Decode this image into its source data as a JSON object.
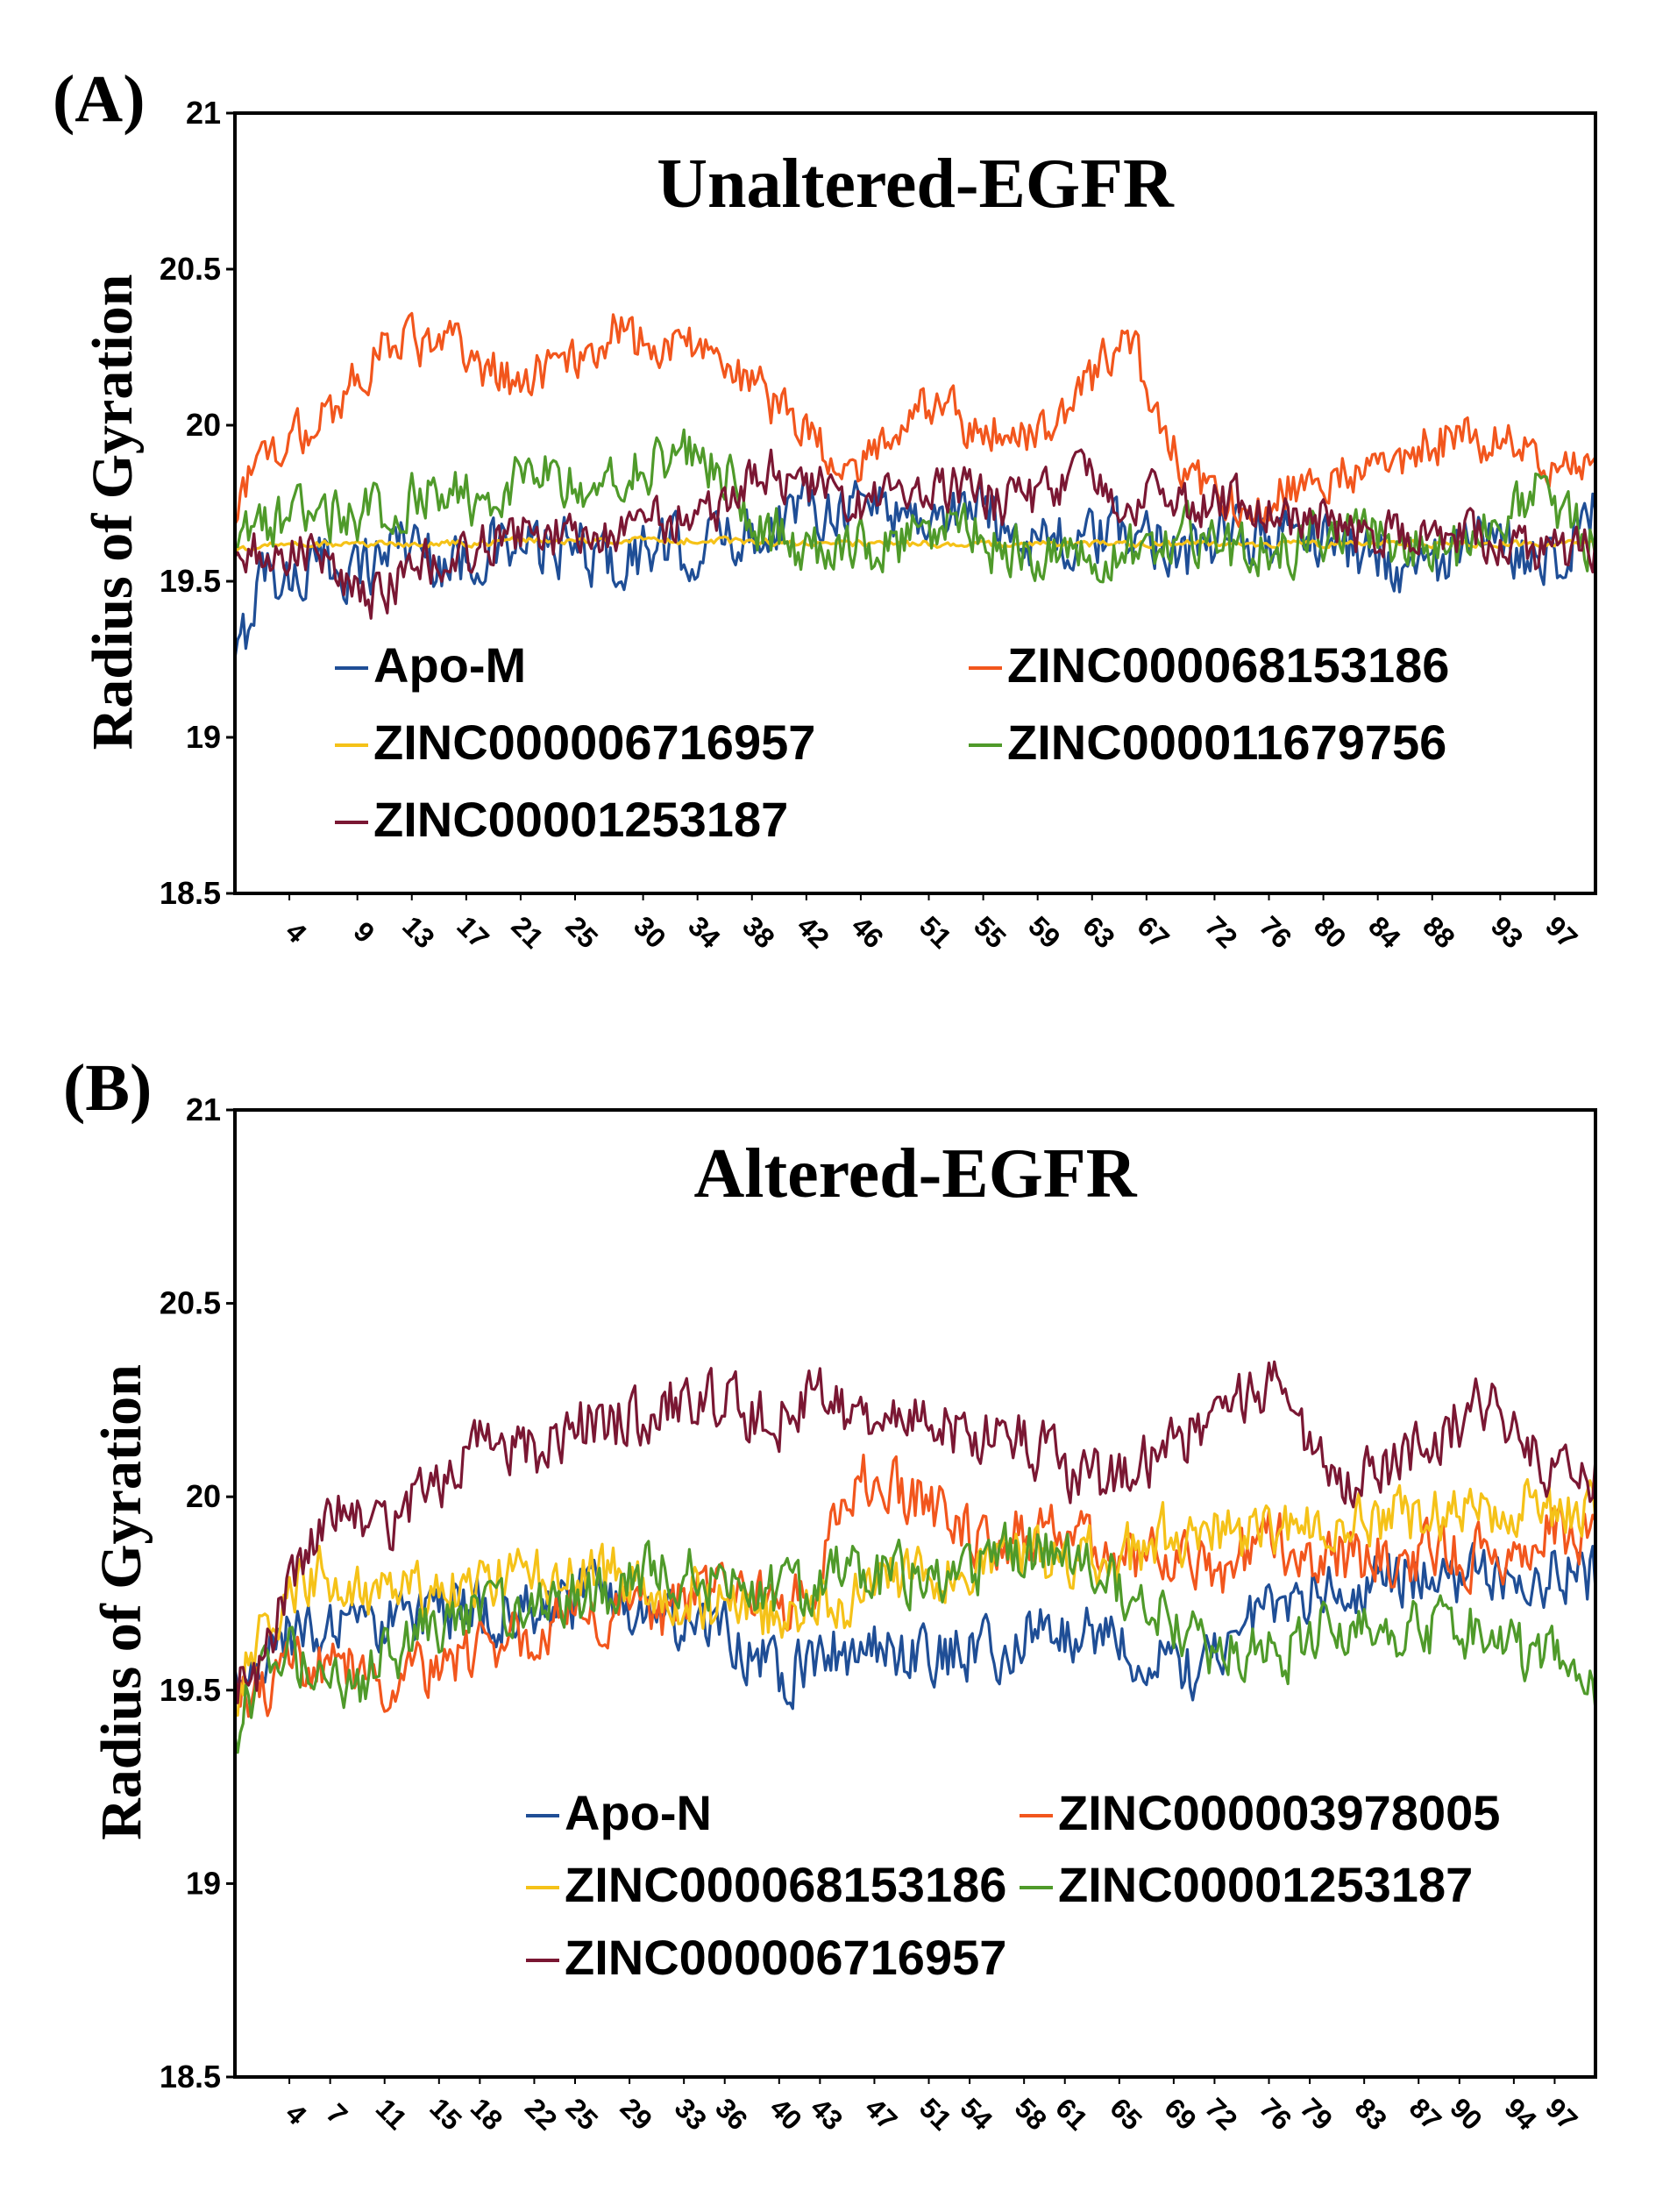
{
  "chart_data": [
    {
      "type": "line",
      "panel_label": "(A)",
      "title": "Unaltered-EGFR",
      "ylabel": "Radius of Gyration",
      "xlabel": "",
      "ylim": [
        18.5,
        21
      ],
      "xlim": [
        0,
        100
      ],
      "y_ticks": [
        "18.5",
        "19",
        "19.5",
        "20",
        "20.5",
        "21"
      ],
      "x_ticks": [
        "4",
        "9",
        "13",
        "17",
        "21",
        "25",
        "30",
        "34",
        "38",
        "42",
        "46",
        "51",
        "55",
        "59",
        "63",
        "67",
        "72",
        "76",
        "80",
        "84",
        "88",
        "93",
        "97"
      ],
      "x": [
        0,
        2,
        4,
        6,
        8,
        10,
        12,
        14,
        16,
        18,
        20,
        22,
        24,
        26,
        28,
        30,
        32,
        34,
        36,
        38,
        40,
        42,
        44,
        46,
        48,
        50,
        52,
        54,
        56,
        58,
        60,
        62,
        64,
        66,
        68,
        70,
        72,
        74,
        76,
        78,
        80,
        82,
        84,
        86,
        88,
        90,
        92,
        94,
        96,
        98,
        100
      ],
      "legend": "inside-bottom",
      "series": [
        {
          "name": "Apo-M",
          "color": "#1f4e96",
          "noise": 0.09,
          "values": [
            19.2,
            19.55,
            19.5,
            19.55,
            19.55,
            19.55,
            19.65,
            19.6,
            19.55,
            19.6,
            19.6,
            19.6,
            19.6,
            19.6,
            19.55,
            19.6,
            19.6,
            19.6,
            19.65,
            19.65,
            19.7,
            19.75,
            19.75,
            19.75,
            19.75,
            19.7,
            19.7,
            19.75,
            19.7,
            19.65,
            19.65,
            19.6,
            19.65,
            19.65,
            19.65,
            19.6,
            19.6,
            19.65,
            19.65,
            19.65,
            19.65,
            19.6,
            19.6,
            19.55,
            19.55,
            19.6,
            19.6,
            19.6,
            19.6,
            19.6,
            19.75
          ]
        },
        {
          "name": "ZINC000068153186",
          "color": "#f2561d",
          "noise": 0.07,
          "values": [
            19.75,
            19.9,
            19.95,
            20.0,
            20.1,
            20.2,
            20.3,
            20.25,
            20.25,
            20.2,
            20.15,
            20.15,
            20.2,
            20.25,
            20.3,
            20.25,
            20.25,
            20.25,
            20.2,
            20.15,
            20.05,
            20.0,
            19.9,
            19.85,
            19.95,
            20.1,
            20.05,
            20.0,
            20.0,
            19.95,
            20.0,
            20.1,
            20.2,
            20.25,
            20.0,
            19.85,
            19.8,
            19.75,
            19.75,
            19.8,
            19.8,
            19.85,
            19.9,
            19.9,
            19.95,
            19.95,
            19.95,
            19.95,
            19.9,
            19.85,
            19.9
          ]
        },
        {
          "name": "ZINC000006716957",
          "color": "#f5c218",
          "noise": 0.01,
          "values": [
            19.6,
            19.62,
            19.62,
            19.62,
            19.62,
            19.62,
            19.62,
            19.62,
            19.62,
            19.62,
            19.63,
            19.63,
            19.63,
            19.63,
            19.63,
            19.63,
            19.63,
            19.63,
            19.63,
            19.63,
            19.62,
            19.62,
            19.62,
            19.62,
            19.62,
            19.62,
            19.62,
            19.62,
            19.62,
            19.62,
            19.62,
            19.62,
            19.62,
            19.62,
            19.62,
            19.62,
            19.62,
            19.62,
            19.62,
            19.62,
            19.62,
            19.62,
            19.62,
            19.62,
            19.62,
            19.62,
            19.62,
            19.62,
            19.62,
            19.62,
            19.62
          ]
        },
        {
          "name": "ZINC000011679756",
          "color": "#4f9a2a",
          "noise": 0.08,
          "values": [
            19.6,
            19.7,
            19.7,
            19.7,
            19.7,
            19.72,
            19.75,
            19.8,
            19.8,
            19.75,
            19.8,
            19.85,
            19.8,
            19.8,
            19.85,
            19.85,
            19.9,
            19.9,
            19.85,
            19.65,
            19.65,
            19.6,
            19.6,
            19.6,
            19.6,
            19.65,
            19.7,
            19.65,
            19.6,
            19.6,
            19.6,
            19.6,
            19.6,
            19.6,
            19.6,
            19.65,
            19.6,
            19.6,
            19.6,
            19.6,
            19.65,
            19.65,
            19.65,
            19.6,
            19.6,
            19.6,
            19.65,
            19.75,
            19.8,
            19.7,
            19.6
          ]
        },
        {
          "name": "ZINC00001253187",
          "color": "#7a1733",
          "noise": 0.07,
          "values": [
            19.55,
            19.6,
            19.6,
            19.6,
            19.5,
            19.45,
            19.5,
            19.55,
            19.55,
            19.6,
            19.65,
            19.65,
            19.65,
            19.65,
            19.65,
            19.7,
            19.7,
            19.7,
            19.75,
            19.85,
            19.85,
            19.8,
            19.8,
            19.75,
            19.8,
            19.8,
            19.8,
            19.8,
            19.75,
            19.75,
            19.8,
            19.85,
            19.8,
            19.75,
            19.8,
            19.75,
            19.75,
            19.75,
            19.75,
            19.7,
            19.7,
            19.65,
            19.65,
            19.65,
            19.65,
            19.65,
            19.65,
            19.6,
            19.6,
            19.6,
            19.6
          ]
        }
      ]
    },
    {
      "type": "line",
      "panel_label": "(B)",
      "title": "Altered-EGFR",
      "ylabel": "Radius of Gyration",
      "xlabel": "",
      "ylim": [
        18.5,
        21
      ],
      "xlim": [
        0,
        100
      ],
      "y_ticks": [
        "18.5",
        "19",
        "19.5",
        "20",
        "20.5",
        "21"
      ],
      "x_ticks": [
        "4",
        "7",
        "11",
        "15",
        "18",
        "22",
        "25",
        "29",
        "33",
        "36",
        "40",
        "43",
        "47",
        "51",
        "54",
        "58",
        "61",
        "65",
        "69",
        "72",
        "76",
        "79",
        "83",
        "87",
        "90",
        "94",
        "97"
      ],
      "x": [
        0,
        2,
        4,
        6,
        8,
        10,
        12,
        14,
        16,
        18,
        20,
        22,
        24,
        26,
        28,
        30,
        32,
        34,
        36,
        38,
        40,
        42,
        44,
        46,
        48,
        50,
        52,
        54,
        56,
        58,
        60,
        62,
        64,
        66,
        68,
        70,
        72,
        74,
        76,
        78,
        80,
        82,
        84,
        86,
        88,
        90,
        92,
        94,
        96,
        98,
        100
      ],
      "legend": "inside-bottom",
      "series": [
        {
          "name": "Apo-N",
          "color": "#1f4e96",
          "noise": 0.07,
          "values": [
            19.5,
            19.6,
            19.65,
            19.65,
            19.65,
            19.65,
            19.7,
            19.7,
            19.7,
            19.7,
            19.7,
            19.7,
            19.7,
            19.75,
            19.75,
            19.7,
            19.7,
            19.65,
            19.65,
            19.6,
            19.55,
            19.55,
            19.6,
            19.6,
            19.6,
            19.6,
            19.6,
            19.6,
            19.6,
            19.65,
            19.65,
            19.65,
            19.65,
            19.6,
            19.6,
            19.55,
            19.6,
            19.65,
            19.7,
            19.75,
            19.75,
            19.75,
            19.8,
            19.8,
            19.8,
            19.8,
            19.8,
            19.8,
            19.8,
            19.8,
            19.8
          ]
        },
        {
          "name": "ZINC000003978005",
          "color": "#f2561d",
          "noise": 0.07,
          "values": [
            19.45,
            19.5,
            19.55,
            19.55,
            19.55,
            19.55,
            19.5,
            19.55,
            19.55,
            19.6,
            19.65,
            19.65,
            19.7,
            19.7,
            19.7,
            19.7,
            19.7,
            19.75,
            19.75,
            19.75,
            19.7,
            19.75,
            19.9,
            20.05,
            20.05,
            20.0,
            19.95,
            19.9,
            19.9,
            19.9,
            19.9,
            19.9,
            19.85,
            19.85,
            19.85,
            19.85,
            19.8,
            19.85,
            19.9,
            19.85,
            19.85,
            19.85,
            19.85,
            19.85,
            19.85,
            19.85,
            19.85,
            19.85,
            19.9,
            19.9,
            19.9
          ]
        },
        {
          "name": "ZINC000068153186",
          "color": "#f5c218",
          "noise": 0.07,
          "values": [
            19.5,
            19.65,
            19.75,
            19.8,
            19.8,
            19.75,
            19.75,
            19.75,
            19.75,
            19.8,
            19.8,
            19.8,
            19.8,
            19.8,
            19.8,
            19.75,
            19.75,
            19.75,
            19.7,
            19.7,
            19.7,
            19.7,
            19.7,
            19.75,
            19.8,
            19.8,
            19.8,
            19.8,
            19.85,
            19.85,
            19.85,
            19.85,
            19.85,
            19.85,
            19.9,
            19.9,
            19.9,
            19.9,
            19.9,
            19.95,
            19.95,
            19.95,
            19.95,
            19.95,
            19.95,
            19.95,
            19.95,
            19.95,
            20.0,
            19.95,
            20.0
          ]
        },
        {
          "name": "ZINC00001253187",
          "color": "#4f9a2a",
          "noise": 0.07,
          "values": [
            19.4,
            19.55,
            19.6,
            19.5,
            19.5,
            19.55,
            19.6,
            19.65,
            19.65,
            19.7,
            19.7,
            19.7,
            19.75,
            19.75,
            19.75,
            19.8,
            19.8,
            19.8,
            19.75,
            19.75,
            19.75,
            19.75,
            19.8,
            19.8,
            19.8,
            19.8,
            19.8,
            19.8,
            19.85,
            19.85,
            19.85,
            19.85,
            19.8,
            19.75,
            19.7,
            19.65,
            19.6,
            19.6,
            19.6,
            19.6,
            19.65,
            19.65,
            19.65,
            19.65,
            19.65,
            19.65,
            19.65,
            19.6,
            19.6,
            19.6,
            19.5
          ]
        },
        {
          "name": "ZINC000006716957",
          "color": "#7a1733",
          "noise": 0.07,
          "values": [
            19.5,
            19.55,
            19.8,
            19.9,
            19.95,
            19.9,
            19.95,
            20.0,
            20.05,
            20.15,
            20.15,
            20.1,
            20.15,
            20.2,
            20.2,
            20.2,
            20.25,
            20.25,
            20.25,
            20.2,
            20.2,
            20.25,
            20.25,
            20.2,
            20.2,
            20.2,
            20.2,
            20.15,
            20.2,
            20.15,
            20.1,
            20.05,
            20.05,
            20.1,
            20.1,
            20.15,
            20.2,
            20.25,
            20.3,
            20.2,
            20.1,
            20.05,
            20.05,
            20.1,
            20.15,
            20.2,
            20.25,
            20.15,
            20.1,
            20.05,
            20.05
          ]
        }
      ]
    }
  ]
}
